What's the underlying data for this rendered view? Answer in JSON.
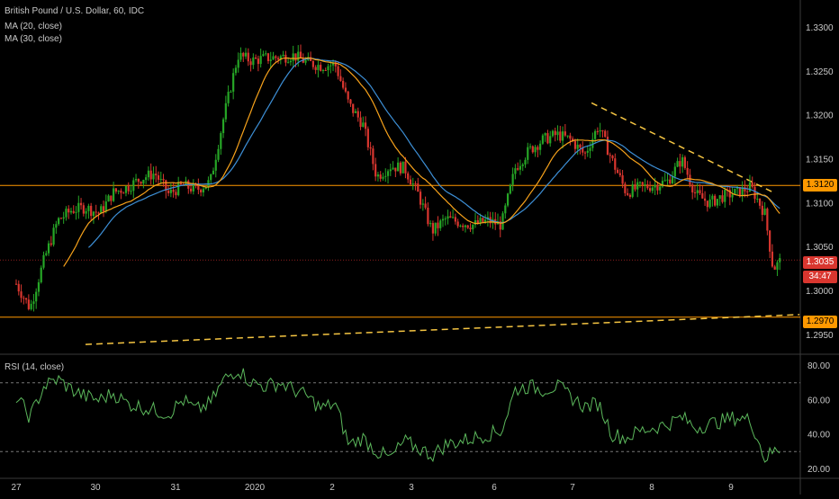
{
  "legend": {
    "symbol": "British Pound / U.S. Dollar, 60, IDC",
    "ma20": "MA (20, close)",
    "ma30": "MA (30, close)",
    "rsi": "RSI (14, close)"
  },
  "price_tags": {
    "upper_line": "1.3120",
    "current": "1.3035",
    "countdown": "34:47",
    "lower_line": "1.2970"
  },
  "colors": {
    "up": "#26a626",
    "down": "#d9362f",
    "ma20": "#f7a21b",
    "ma30": "#3d8fd6",
    "hline": "#ff9800",
    "rsi": "#5cb85c",
    "grid_text": "#c8c8c8"
  },
  "chart_data": [
    {
      "type": "candlestick",
      "title": "British Pound / U.S. Dollar, 60, IDC",
      "x_tick_labels": [
        "27",
        "30",
        "31",
        "2020",
        "2",
        "3",
        "6",
        "7",
        "8",
        "9"
      ],
      "y_ticks": [
        "1.3300",
        "1.3250",
        "1.3200",
        "1.3150",
        "1.3100",
        "1.3050",
        "1.3000",
        "1.2950"
      ],
      "ylim": [
        1.2935,
        1.3325
      ],
      "horizontal_lines": [
        1.312,
        1.297,
        1.3035
      ],
      "trendlines": [
        {
          "name": "resistance",
          "from": [
            41.5,
            1.3214
          ],
          "to": [
            54.5,
            1.3113
          ]
        },
        {
          "name": "support",
          "from": [
            5.0,
            1.2939
          ],
          "to": [
            56.5,
            1.2973
          ]
        }
      ],
      "ma_legend": [
        "MA (20, close)",
        "MA (30, close)"
      ],
      "close_anchors": [
        [
          0,
          1.3008
        ],
        [
          1,
          1.298
        ],
        [
          2,
          1.3035
        ],
        [
          3,
          1.308
        ],
        [
          4,
          1.3092
        ],
        [
          5,
          1.3095
        ],
        [
          6,
          1.3088
        ],
        [
          7,
          1.3112
        ],
        [
          8,
          1.3118
        ],
        [
          9,
          1.3128
        ],
        [
          10,
          1.3134
        ],
        [
          11,
          1.311
        ],
        [
          12,
          1.312
        ],
        [
          13,
          1.3115
        ],
        [
          14,
          1.3124
        ],
        [
          15,
          1.32
        ],
        [
          16,
          1.3268
        ],
        [
          17,
          1.3262
        ],
        [
          18,
          1.3265
        ],
        [
          19,
          1.3266
        ],
        [
          20,
          1.3268
        ],
        [
          21,
          1.326
        ],
        [
          22,
          1.3256
        ],
        [
          23,
          1.3258
        ],
        [
          24,
          1.3212
        ],
        [
          25,
          1.319
        ],
        [
          26,
          1.313
        ],
        [
          27,
          1.3142
        ],
        [
          28,
          1.314
        ],
        [
          29,
          1.311
        ],
        [
          30,
          1.3068
        ],
        [
          31,
          1.3082
        ],
        [
          32,
          1.3078
        ],
        [
          33,
          1.3075
        ],
        [
          34,
          1.308
        ],
        [
          35,
          1.3075
        ],
        [
          36,
          1.314
        ],
        [
          37,
          1.316
        ],
        [
          38,
          1.3172
        ],
        [
          39,
          1.3178
        ],
        [
          40,
          1.3172
        ],
        [
          41,
          1.3155
        ],
        [
          42,
          1.3188
        ],
        [
          43,
          1.3148
        ],
        [
          44,
          1.3112
        ],
        [
          45,
          1.3118
        ],
        [
          46,
          1.312
        ],
        [
          47,
          1.3125
        ],
        [
          48,
          1.315
        ],
        [
          49,
          1.311
        ],
        [
          50,
          1.31
        ],
        [
          51,
          1.3108
        ],
        [
          52,
          1.3112
        ],
        [
          53,
          1.3118
        ],
        [
          54,
          1.3088
        ],
        [
          54.6,
          1.3025
        ],
        [
          55.2,
          1.3035
        ]
      ]
    },
    {
      "type": "line",
      "title": "RSI (14, close)",
      "y_ticks": [
        "80.00",
        "60.00",
        "40.00",
        "20.00"
      ],
      "ylim": [
        15,
        85
      ],
      "bands": [
        70,
        30
      ],
      "values": [
        [
          0,
          62
        ],
        [
          1,
          50
        ],
        [
          2,
          68
        ],
        [
          3,
          72
        ],
        [
          4,
          66
        ],
        [
          5,
          62
        ],
        [
          6,
          60
        ],
        [
          7,
          64
        ],
        [
          8,
          58
        ],
        [
          9,
          56
        ],
        [
          10,
          54
        ],
        [
          11,
          52
        ],
        [
          12,
          60
        ],
        [
          13,
          54
        ],
        [
          14,
          58
        ],
        [
          15,
          72
        ],
        [
          16,
          78
        ],
        [
          17,
          70
        ],
        [
          18,
          68
        ],
        [
          19,
          70
        ],
        [
          20,
          66
        ],
        [
          21,
          62
        ],
        [
          22,
          55
        ],
        [
          23,
          58
        ],
        [
          24,
          34
        ],
        [
          25,
          38
        ],
        [
          26,
          30
        ],
        [
          27,
          26
        ],
        [
          28,
          36
        ],
        [
          29,
          32
        ],
        [
          30,
          28
        ],
        [
          31,
          34
        ],
        [
          32,
          36
        ],
        [
          33,
          38
        ],
        [
          34,
          40
        ],
        [
          35,
          42
        ],
        [
          36,
          66
        ],
        [
          37,
          68
        ],
        [
          38,
          66
        ],
        [
          39,
          68
        ],
        [
          40,
          62
        ],
        [
          41,
          56
        ],
        [
          42,
          58
        ],
        [
          43,
          40
        ],
        [
          44,
          38
        ],
        [
          45,
          42
        ],
        [
          46,
          44
        ],
        [
          47,
          46
        ],
        [
          48,
          50
        ],
        [
          49,
          44
        ],
        [
          50,
          46
        ],
        [
          51,
          48
        ],
        [
          52,
          50
        ],
        [
          53,
          48
        ],
        [
          54,
          26
        ],
        [
          54.6,
          30
        ],
        [
          55.2,
          32
        ]
      ]
    }
  ]
}
